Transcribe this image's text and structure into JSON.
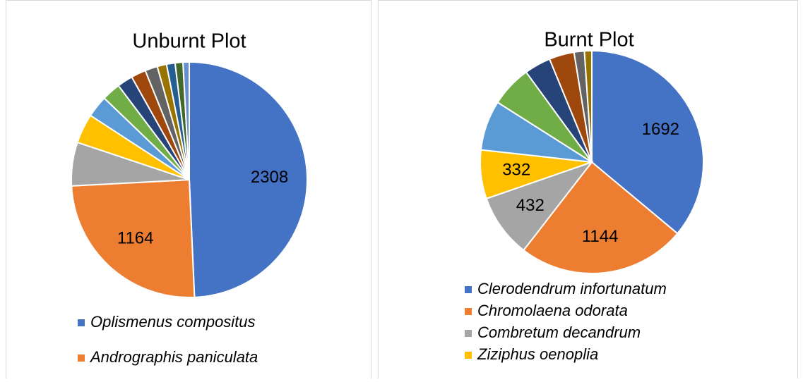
{
  "chart_data": [
    {
      "type": "pie",
      "title": "Unburnt Plot",
      "categories": [
        "Oplismenus compositus",
        "Andrographis paniculata",
        null,
        null,
        null,
        null,
        null,
        null,
        null,
        null,
        null,
        null,
        null
      ],
      "values": [
        2308,
        1164,
        280,
        190,
        140,
        120,
        100,
        95,
        80,
        60,
        55,
        50,
        40
      ],
      "colors": [
        "#4472C4",
        "#ED7D31",
        "#A5A5A5",
        "#FFC000",
        "#5B9BD5",
        "#70AD47",
        "#264478",
        "#9E480E",
        "#636363",
        "#997300",
        "#255E91",
        "#43682B",
        "#698ED0"
      ]
    },
    {
      "type": "pie",
      "title": "Burnt Plot",
      "categories": [
        "Clerodendrum infortunatum",
        "Chromolaena odorata",
        "Combretum decandrum",
        "Ziziphus oenoplia",
        null,
        null,
        null,
        null,
        null,
        null
      ],
      "values": [
        1692,
        1144,
        432,
        332,
        340,
        280,
        180,
        170,
        70,
        50
      ],
      "colors": [
        "#4472C4",
        "#ED7D31",
        "#A5A5A5",
        "#FFC000",
        "#5B9BD5",
        "#70AD47",
        "#264478",
        "#9E480E",
        "#636363",
        "#997300"
      ]
    }
  ]
}
